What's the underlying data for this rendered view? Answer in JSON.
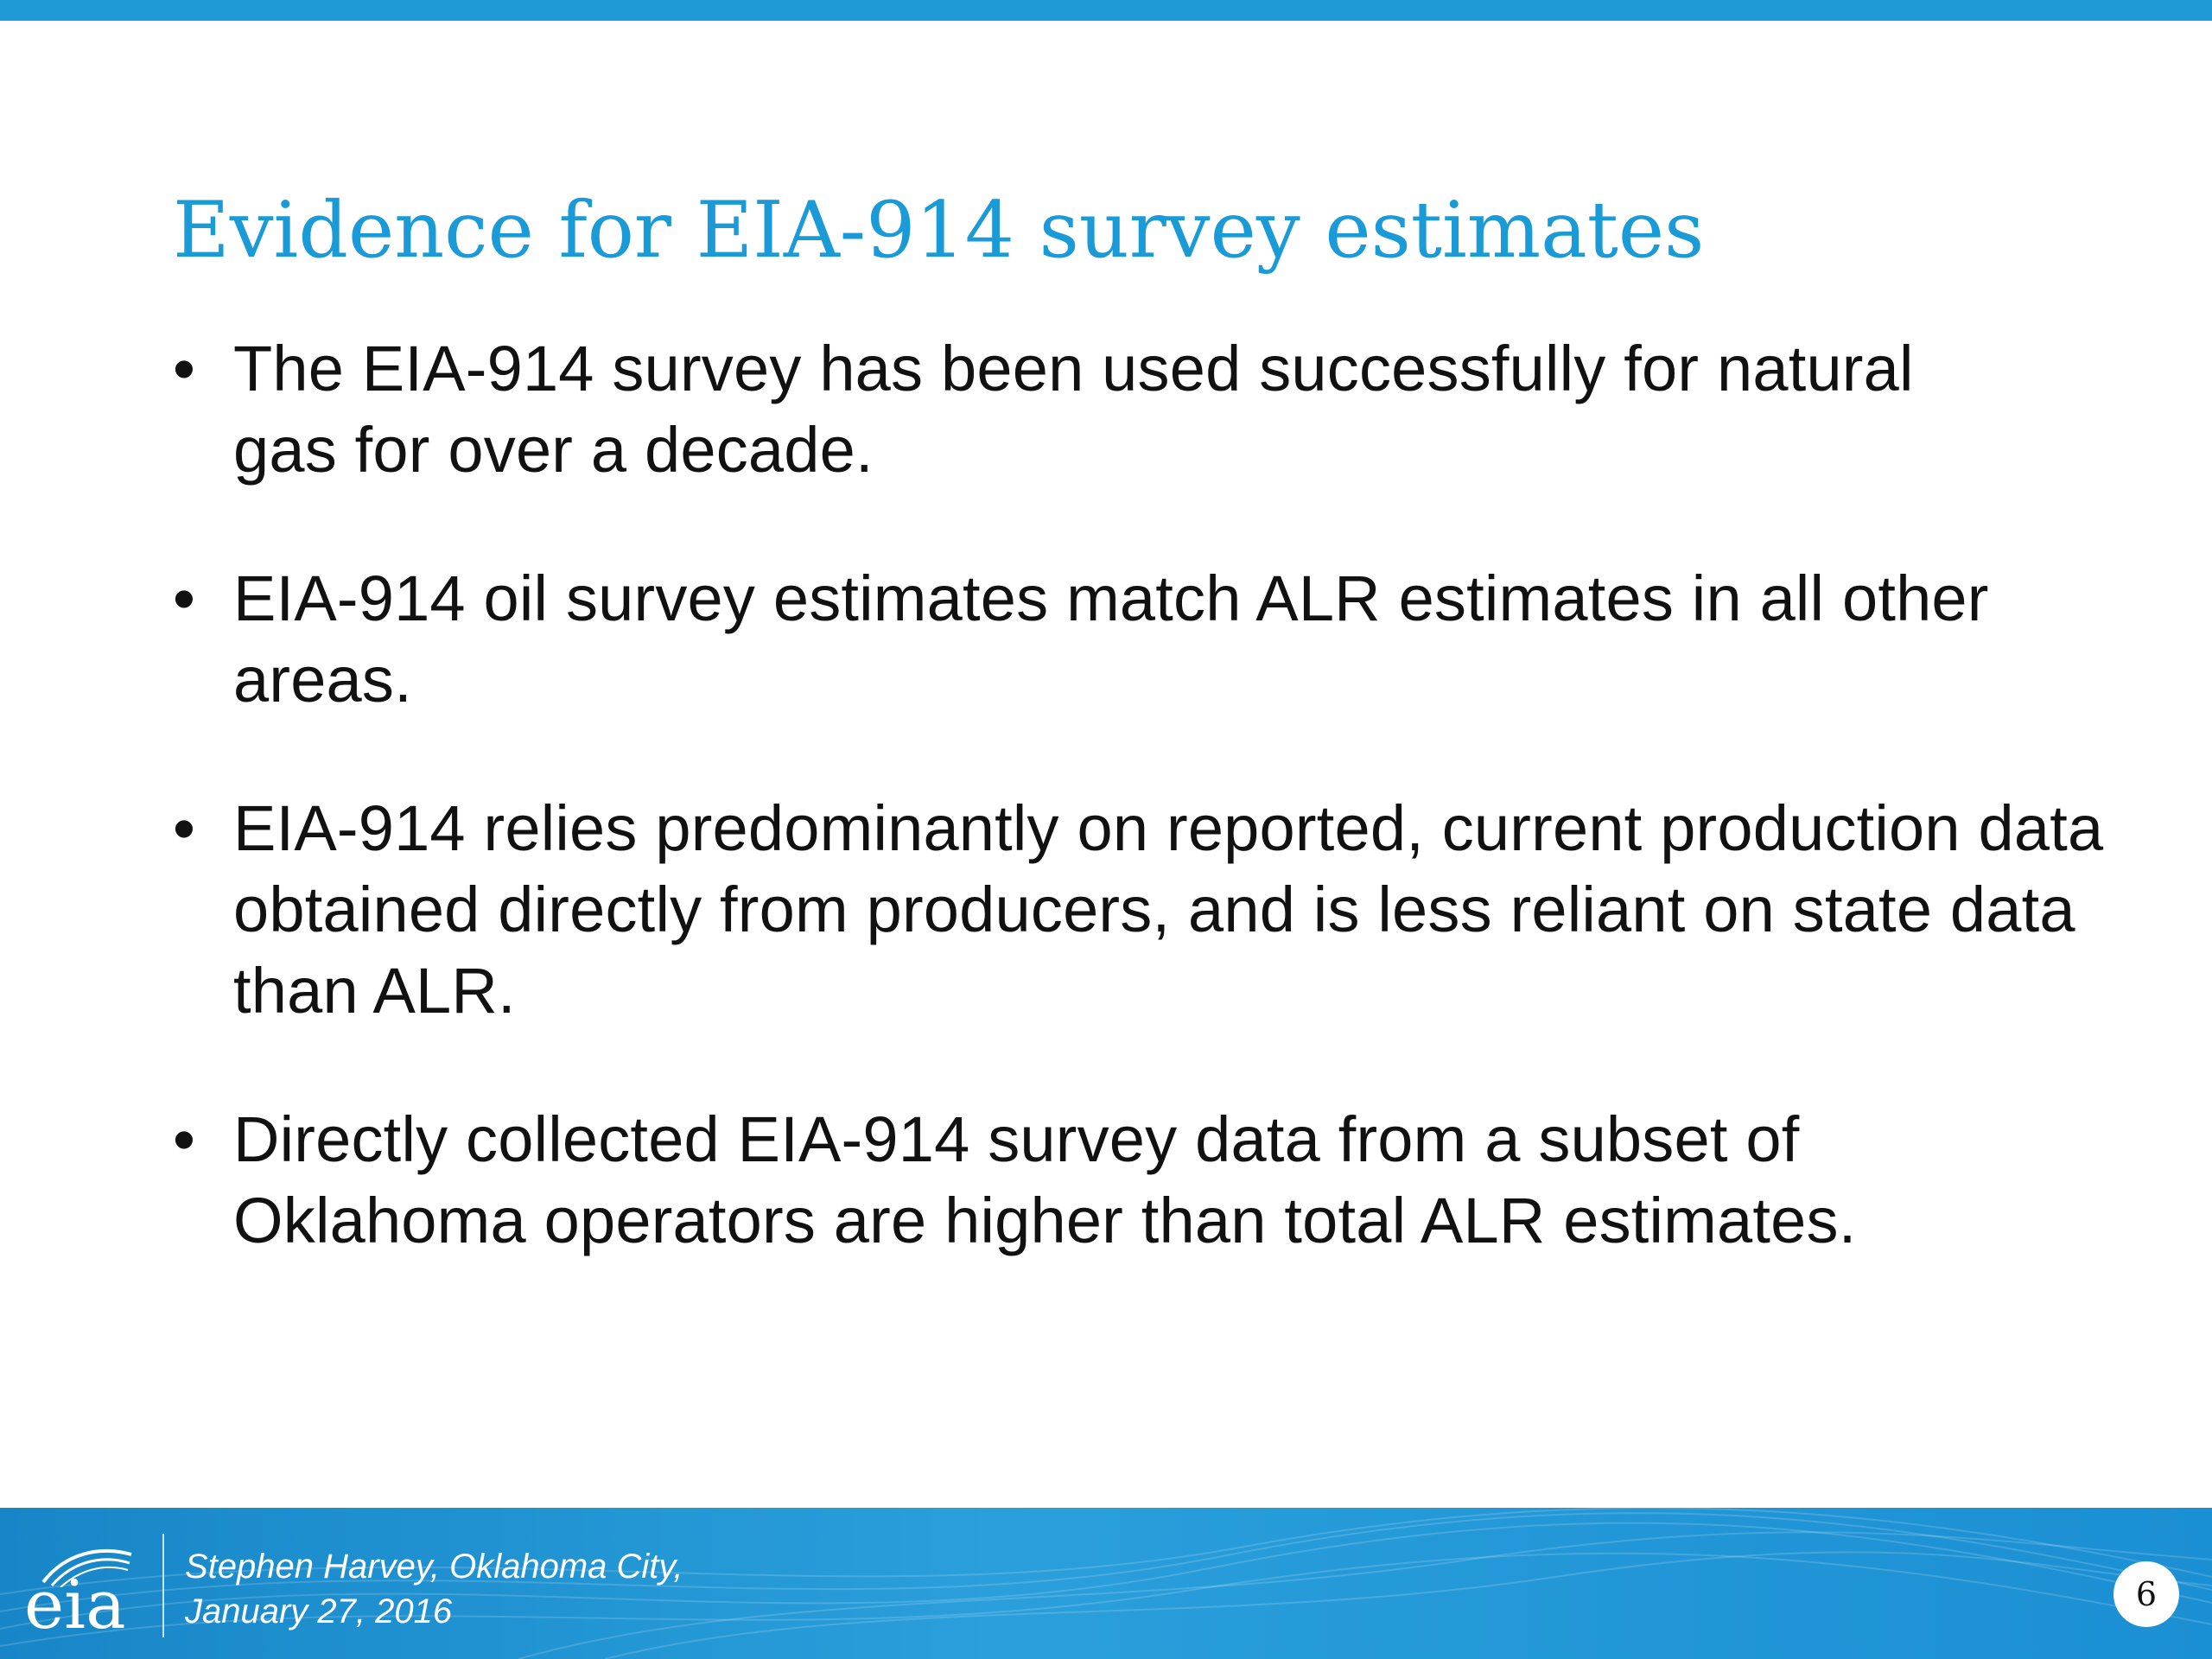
{
  "slide": {
    "title": "Evidence for EIA-914 survey estimates",
    "bullets": [
      {
        "text": "The EIA-914 survey has been used successfully for natural gas for over a decade."
      },
      {
        "text": "EIA-914 oil survey estimates match ALR estimates in all other areas."
      },
      {
        "text": "EIA-914 relies predominantly on reported, current production data obtained directly from producers, and is less reliant on state data than ALR."
      },
      {
        "text": "Directly collected EIA-914 survey data from a subset of Oklahoma operators are higher than total ALR estimates."
      }
    ],
    "bullet_glyph": "•"
  },
  "footer": {
    "logo_text": "eia",
    "credit_line1": "Stephen Harvey, Oklahoma City,",
    "credit_line2": "January 27, 2016",
    "page_number": "6"
  },
  "colors": {
    "title": "#1a9ad6",
    "accent_bar": "#1f9ad6",
    "footer_bg": "#1f95d4",
    "body_text": "#111111"
  }
}
